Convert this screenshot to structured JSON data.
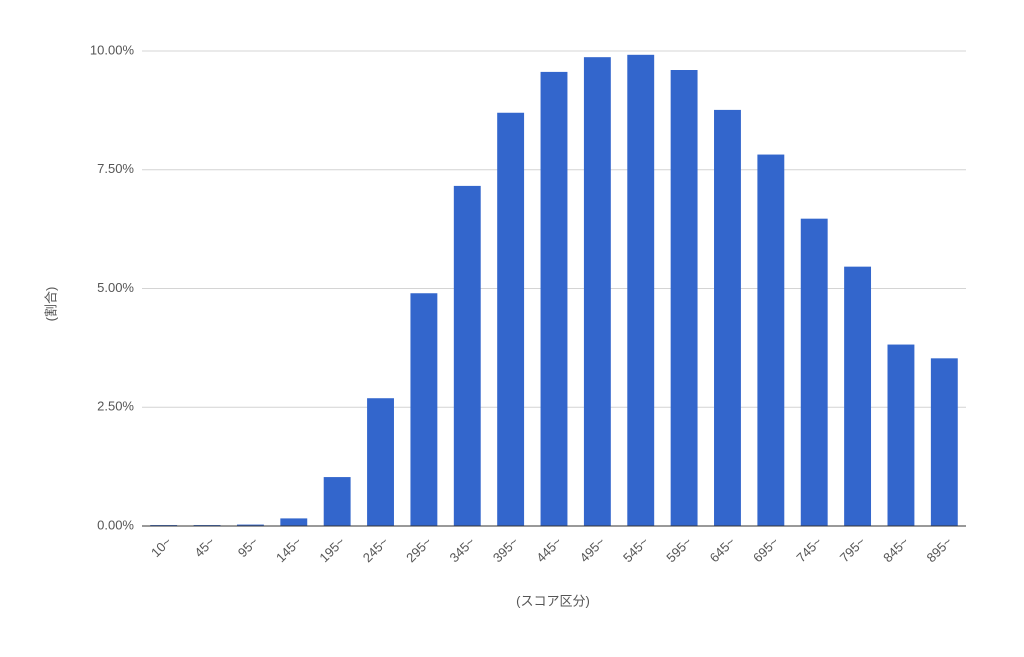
{
  "chart_data": {
    "type": "bar",
    "x_label": "(スコア区分)",
    "y_label": "(割合)",
    "categories": [
      "10~",
      "45~",
      "95~",
      "145~",
      "195~",
      "245~",
      "295~",
      "345~",
      "395~",
      "445~",
      "495~",
      "545~",
      "595~",
      "645~",
      "695~",
      "745~",
      "795~",
      "845~",
      "895~"
    ],
    "values": [
      0.02,
      0.02,
      0.03,
      0.16,
      1.03,
      2.69,
      4.9,
      7.16,
      8.7,
      9.56,
      9.87,
      9.92,
      9.6,
      8.76,
      7.82,
      6.47,
      5.46,
      3.82,
      3.53
    ],
    "color": "#3366cc",
    "ylim": [
      0,
      10
    ],
    "yticks": [
      {
        "value": 0,
        "label": "0.00%"
      },
      {
        "value": 2.5,
        "label": "2.50%"
      },
      {
        "value": 5,
        "label": "5.00%"
      },
      {
        "value": 7.5,
        "label": "7.50%"
      },
      {
        "value": 10,
        "label": "10.00%"
      }
    ],
    "grid": true
  }
}
